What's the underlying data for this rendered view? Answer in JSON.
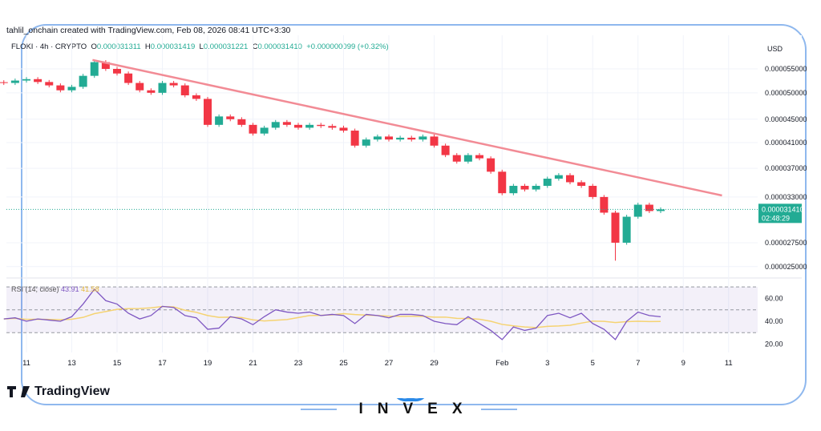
{
  "header": {
    "attribution": "tahlil_onchain created with TradingView.com, Feb 08, 2026 08:41 UTC+3:30"
  },
  "legend": {
    "symbol": "FLOKI · 4h · CRYPTO",
    "o_label": "O",
    "o": "0.000031311",
    "h_label": "H",
    "h": "0.000031419",
    "l_label": "L",
    "l": "0.000031221",
    "c_label": "C",
    "c": "0.000031410",
    "change": "+0.000000099 (+0.32%)"
  },
  "price_axis": {
    "currency": "USD",
    "ticks": [
      "0.000055000",
      "0.000050000",
      "0.000045000",
      "0.000041000",
      "0.000037000",
      "0.000033000",
      "0.000027500",
      "0.000025000"
    ],
    "last_price": "0.000031410",
    "countdown": "02:48:29",
    "scale": "log"
  },
  "rsi": {
    "label": "RSI (14; close)",
    "value": "43.91",
    "ma_value": "41.58",
    "ticks": [
      "60.00",
      "40.00",
      "20.00"
    ],
    "bands": [
      30,
      50,
      70
    ]
  },
  "time_axis": {
    "ticks": [
      "11",
      "13",
      "15",
      "17",
      "19",
      "21",
      "23",
      "25",
      "27",
      "29",
      "Feb",
      "3",
      "5",
      "7",
      "9",
      "11"
    ]
  },
  "colors": {
    "up": "#22ab94",
    "down": "#f23645",
    "trendline": "#f28b95",
    "rsi": "#7e57c2",
    "rsi_ma": "#f5d372",
    "last_price_bg": "#22ab94",
    "frame": "#8fb8ee",
    "brand": "#2b8ae8"
  },
  "chart_data": {
    "type": "candlestick",
    "start": "2026-01-10",
    "step_hours": 12,
    "closes": [
      52,
      52.5,
      52.8,
      52.2,
      51.5,
      50.5,
      51.2,
      53.5,
      56.5,
      55,
      54,
      52,
      50.5,
      50,
      52,
      51.5,
      49.5,
      48.8,
      44,
      45.5,
      45,
      44,
      42.5,
      43.5,
      44.5,
      44,
      43.5,
      44,
      43.8,
      43.5,
      43,
      40.5,
      41.5,
      42,
      41.5,
      41.8,
      41.5,
      42,
      40.5,
      39,
      38,
      39,
      38.5,
      36.5,
      33.5,
      34.5,
      34,
      34.5,
      35.5,
      36,
      35,
      34.5,
      33,
      31,
      27.5,
      30.5,
      32,
      31.2,
      31.41
    ],
    "notable_low": {
      "date": "2026-02-06",
      "value": 25.6
    },
    "trendline": {
      "from": {
        "date": "2026-01-13T22",
        "value": 57
      },
      "to": {
        "date": "2026-02-10T17",
        "value": 33.2
      }
    },
    "rsi_values": [
      42,
      43,
      40,
      42,
      41,
      40,
      44,
      55,
      68,
      58,
      55,
      47,
      42,
      45,
      53,
      52,
      45,
      43,
      33,
      34,
      44,
      42,
      37,
      44,
      50,
      48,
      47,
      48,
      45,
      46,
      45,
      38,
      46,
      45,
      43,
      46,
      46,
      45,
      40,
      38,
      37,
      44,
      38,
      32,
      24,
      35,
      32,
      34,
      45,
      47,
      43,
      47,
      38,
      33,
      24,
      40,
      48,
      45,
      43.91
    ]
  },
  "branding": {
    "tradingview": "TradingView",
    "invex": "INVEX"
  }
}
